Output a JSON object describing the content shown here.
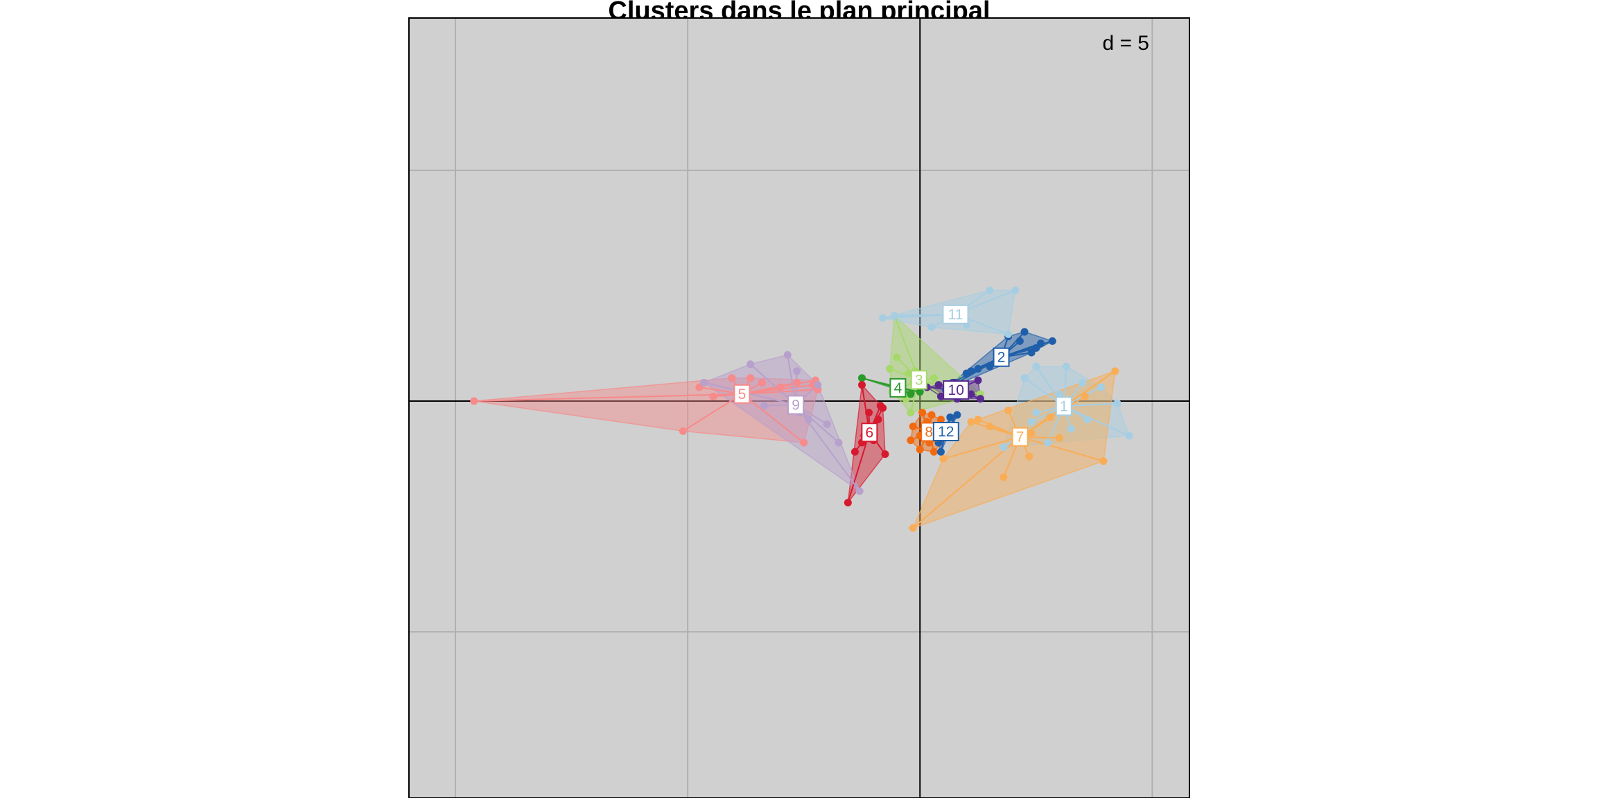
{
  "chart_data": {
    "type": "scatter",
    "title": "Clusters dans le plan principal",
    "scale_label": "d = 5",
    "xlim": [
      -22,
      11.6
    ],
    "ylim": [
      -17.2,
      16.6
    ],
    "grid_step": 10,
    "grid": true,
    "background_color": "#d0d0d0",
    "grid_color": "#b0b0b0",
    "clusters": [
      {
        "name": "1",
        "color": "#a6cee3",
        "points": [
          [
            6.0,
            0.3
          ],
          [
            7.8,
            0.6
          ],
          [
            8.5,
            -0.1
          ],
          [
            9.0,
            -1.5
          ],
          [
            7.0,
            0.8
          ],
          [
            6.3,
            1.5
          ],
          [
            5.0,
            1.5
          ],
          [
            4.8,
            -0.9
          ],
          [
            5.5,
            -1.8
          ],
          [
            3.6,
            -2.0
          ],
          [
            5.0,
            -0.5
          ],
          [
            6.5,
            -1.2
          ],
          [
            7.2,
            -0.8
          ],
          [
            4.5,
            1.0
          ]
        ]
      },
      {
        "name": "2",
        "color": "#1f5faa",
        "points": [
          [
            3.8,
            2.8
          ],
          [
            4.5,
            3.0
          ],
          [
            5.2,
            2.5
          ],
          [
            5.0,
            2.3
          ],
          [
            4.8,
            2.1
          ],
          [
            3.5,
            2.0
          ],
          [
            3.0,
            1.5
          ],
          [
            2.5,
            1.4
          ],
          [
            2.2,
            1.3
          ],
          [
            2.0,
            1.2
          ],
          [
            1.4,
            0.8
          ],
          [
            1.1,
            0.5
          ],
          [
            4.3,
            2.6
          ],
          [
            5.7,
            2.6
          ]
        ]
      },
      {
        "name": "3",
        "color": "#a6d96a",
        "points": [
          [
            -1.1,
            3.7
          ],
          [
            -1.0,
            1.9
          ],
          [
            -1.3,
            1.4
          ],
          [
            -0.5,
            1.2
          ],
          [
            -0.2,
            1.3
          ],
          [
            1.0,
            0.2
          ],
          [
            0.6,
            1.0
          ],
          [
            1.5,
            0.5
          ],
          [
            2.6,
            0.3
          ],
          [
            -0.3,
            0.8
          ],
          [
            -0.6,
            0.1
          ],
          [
            0.3,
            0.6
          ],
          [
            -1.2,
            0.4
          ],
          [
            -0.4,
            -0.5
          ]
        ]
      },
      {
        "name": "4",
        "color": "#2a9a2a",
        "points": [
          [
            -2.5,
            1.0
          ],
          [
            -0.9,
            0.6
          ],
          [
            -0.4,
            0.3
          ],
          [
            0.0,
            0.4
          ]
        ]
      },
      {
        "name": "5",
        "color": "#f78a8a",
        "points": [
          [
            -19.2,
            0.0
          ],
          [
            -10.2,
            -1.3
          ],
          [
            -8.9,
            0.2
          ],
          [
            -8.1,
            1.0
          ],
          [
            -7.3,
            1.0
          ],
          [
            -6.8,
            0.8
          ],
          [
            -5.3,
            0.8
          ],
          [
            -4.4,
            0.5
          ],
          [
            -4.5,
            0.9
          ],
          [
            -5.0,
            -1.8
          ],
          [
            -6.0,
            0.6
          ],
          [
            -4.6,
            0.7
          ],
          [
            -7.5,
            0.3
          ],
          [
            -9.5,
            0.6
          ]
        ]
      },
      {
        "name": "6",
        "color": "#d7192e",
        "points": [
          [
            -3.1,
            -4.4
          ],
          [
            -2.5,
            0.7
          ],
          [
            -2.0,
            -1.3
          ],
          [
            -1.7,
            -0.2
          ],
          [
            -1.6,
            -0.3
          ],
          [
            -1.5,
            -2.3
          ],
          [
            -2.5,
            -1.8
          ],
          [
            -2.8,
            -2.2
          ],
          [
            -2.0,
            -1.7
          ],
          [
            -1.8,
            -0.8
          ],
          [
            -2.2,
            -0.5
          ],
          [
            -2.4,
            -1.5
          ]
        ]
      },
      {
        "name": "7",
        "color": "#f9ad57",
        "points": [
          [
            -0.3,
            -5.5
          ],
          [
            8.4,
            1.3
          ],
          [
            7.9,
            -2.6
          ],
          [
            4.8,
            -1.4
          ],
          [
            4.7,
            -2.4
          ],
          [
            3.6,
            -3.3
          ],
          [
            1.0,
            -2.5
          ],
          [
            2.2,
            -0.9
          ],
          [
            3.8,
            -0.4
          ],
          [
            5.6,
            -0.7
          ],
          [
            7.1,
            0.2
          ],
          [
            3.0,
            -1.1
          ],
          [
            2.5,
            -0.8
          ],
          [
            6.0,
            -1.6
          ]
        ]
      },
      {
        "name": "8",
        "color": "#f26a10",
        "points": [
          [
            -0.3,
            -1.1
          ],
          [
            0.1,
            -0.5
          ],
          [
            0.5,
            -0.6
          ],
          [
            0.9,
            -0.8
          ],
          [
            1.1,
            -1.1
          ],
          [
            1.2,
            -1.5
          ],
          [
            0.8,
            -1.6
          ],
          [
            0.4,
            -1.8
          ],
          [
            0.0,
            -2.1
          ],
          [
            -0.4,
            -1.7
          ],
          [
            0.2,
            -1.3
          ],
          [
            0.6,
            -2.2
          ],
          [
            0.3,
            -0.9
          ],
          [
            0.0,
            -1.5
          ]
        ]
      },
      {
        "name": "9",
        "color": "#b8a0cc",
        "points": [
          [
            -7.3,
            1.6
          ],
          [
            -5.7,
            2.0
          ],
          [
            -5.3,
            1.3
          ],
          [
            -4.4,
            0.7
          ],
          [
            -3.5,
            -1.8
          ],
          [
            -2.6,
            -3.9
          ],
          [
            -9.3,
            0.8
          ],
          [
            -6.7,
            -0.2
          ],
          [
            -5.2,
            -0.5
          ],
          [
            -4.8,
            -0.8
          ],
          [
            -4.0,
            -1.0
          ]
        ]
      },
      {
        "name": "10",
        "color": "#582a8f",
        "points": [
          [
            0.3,
            0.6
          ],
          [
            0.8,
            0.7
          ],
          [
            1.5,
            0.8
          ],
          [
            2.5,
            0.9
          ],
          [
            2.2,
            0.3
          ],
          [
            1.6,
            0.1
          ],
          [
            2.6,
            0.1
          ],
          [
            1.2,
            0.6
          ],
          [
            0.9,
            0.2
          ],
          [
            1.9,
            0.5
          ]
        ]
      },
      {
        "name": "11",
        "color": "#a6cee3",
        "points": [
          [
            -1.6,
            3.6
          ],
          [
            -1.1,
            3.7
          ],
          [
            3.0,
            4.8
          ],
          [
            4.1,
            4.8
          ],
          [
            3.8,
            2.9
          ],
          [
            2.0,
            3.3
          ],
          [
            0.5,
            3.2
          ]
        ]
      },
      {
        "name": "12",
        "color": "#1f5faa",
        "points": [
          [
            1.6,
            -0.6
          ],
          [
            1.3,
            -0.7
          ],
          [
            1.0,
            -1.3
          ],
          [
            0.8,
            -1.8
          ],
          [
            0.9,
            -2.2
          ]
        ]
      }
    ]
  }
}
